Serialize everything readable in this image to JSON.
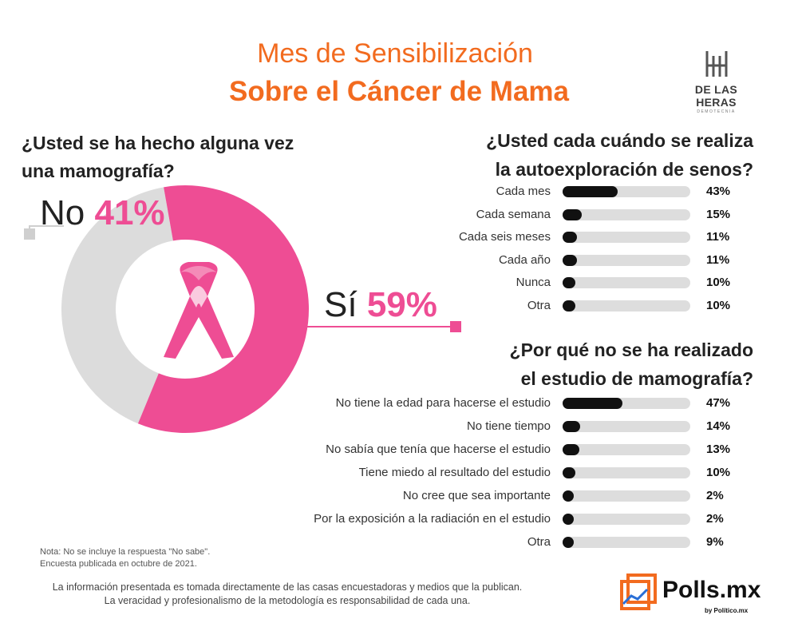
{
  "header": {
    "title_line1": "Mes de Sensibilización",
    "title_line2": "Sobre el Cáncer de Mama"
  },
  "brand": {
    "name": "DE LAS HERAS",
    "sub": "DEMOTECNIA"
  },
  "colors": {
    "orange": "#f26b1f",
    "pink": "#ee4d94",
    "gray": "#dddddd",
    "dark": "#111111"
  },
  "chart_data": [
    {
      "type": "pie",
      "title": "¿Usted se ha hecho alguna vez una mamografía?",
      "categories": [
        "No",
        "Sí"
      ],
      "values": [
        41,
        59
      ],
      "labels": [
        "41%",
        "59%"
      ],
      "colors": [
        "#dcdcdc",
        "#ee4d94"
      ]
    },
    {
      "type": "bar",
      "title": "¿Usted cada cuándo se realiza la autoexploración de senos?",
      "categories": [
        "Cada mes",
        "Cada semana",
        "Cada seis meses",
        "Cada año",
        "Nunca",
        "Otra"
      ],
      "values": [
        43,
        15,
        11,
        11,
        10,
        10
      ],
      "labels": [
        "43%",
        "15%",
        "11%",
        "11%",
        "10%",
        "10%"
      ],
      "ylim": [
        0,
        100
      ]
    },
    {
      "type": "bar",
      "title": "¿Por qué no se ha realizado el estudio de mamografía?",
      "categories": [
        "No tiene la edad para hacerse el estudio",
        "No tiene tiempo",
        "No sabía que tenía que hacerse el estudio",
        "Tiene miedo al resultado del estudio",
        "No cree que sea importante",
        "Por la exposición a la radiación en el estudio",
        "Otra"
      ],
      "values": [
        47,
        14,
        13,
        10,
        2,
        2,
        9
      ],
      "labels": [
        "47%",
        "14%",
        "13%",
        "10%",
        "2%",
        "2%",
        "9%"
      ],
      "ylim": [
        0,
        100
      ]
    }
  ],
  "notes": {
    "line1": "Nota: No se incluye la respuesta \"No sabe\".",
    "line2": "Encuesta publicada en octubre de 2021."
  },
  "disclaimer": {
    "line1": "La información presentada es tomada directamente de las casas encuestadoras y medios que la publican.",
    "line2": "La veracidad y profesionalismo de la metodología es responsabilidad de cada una."
  },
  "footer_brand": {
    "name": "Polls.mx",
    "by": "by Político.mx"
  }
}
